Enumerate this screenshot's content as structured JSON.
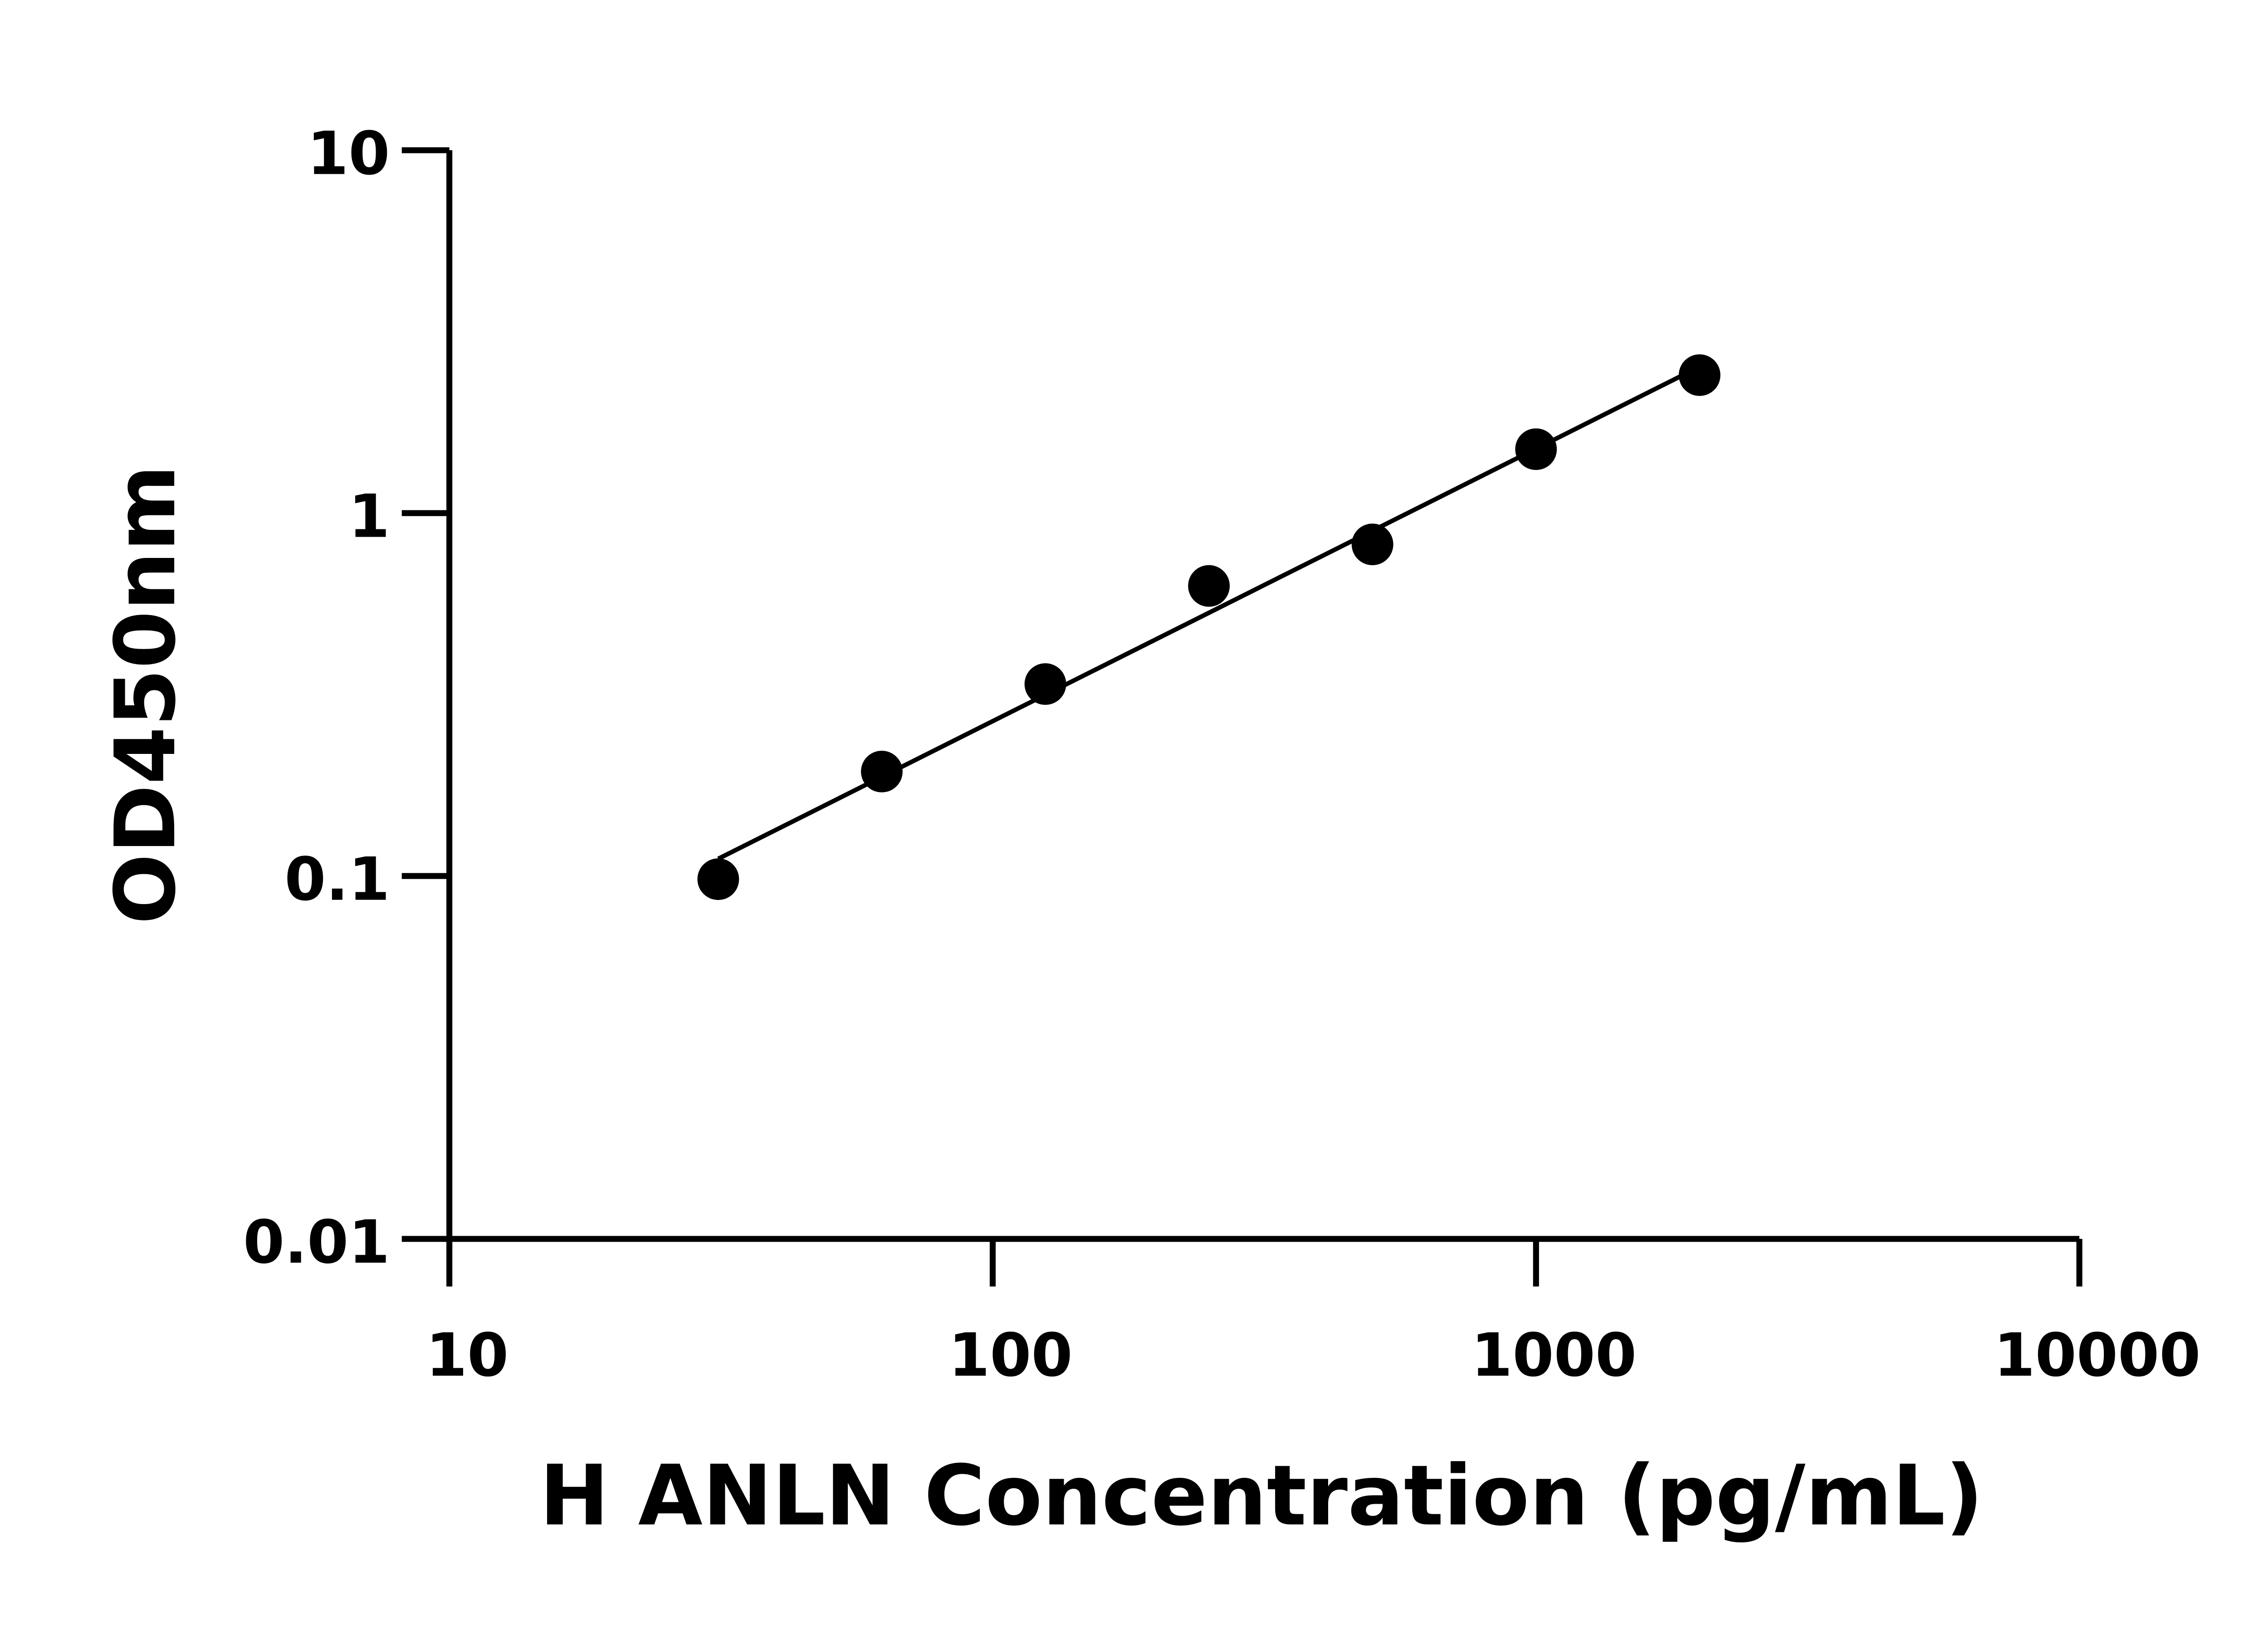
{
  "chart_data": {
    "type": "scatter",
    "title": "",
    "xlabel": "H ANLN Concentration (pg/mL)",
    "ylabel": "OD450nm",
    "xscale": "log",
    "yscale": "log",
    "xlim": [
      10,
      10000
    ],
    "ylim": [
      0.01,
      10
    ],
    "x_ticks": [
      "10",
      "100",
      "1000",
      "10000"
    ],
    "y_ticks": [
      "0.01",
      "0.1",
      "1",
      "10"
    ],
    "grid": false,
    "legend": "none",
    "fit_line": "log-log linear",
    "marker_color": "#000000",
    "series": [
      {
        "x": [
          31.25,
          62.5,
          125,
          250,
          500,
          1000,
          2000
        ],
        "y": [
          0.098,
          0.194,
          0.338,
          0.63,
          0.82,
          1.5,
          2.4
        ]
      }
    ]
  }
}
